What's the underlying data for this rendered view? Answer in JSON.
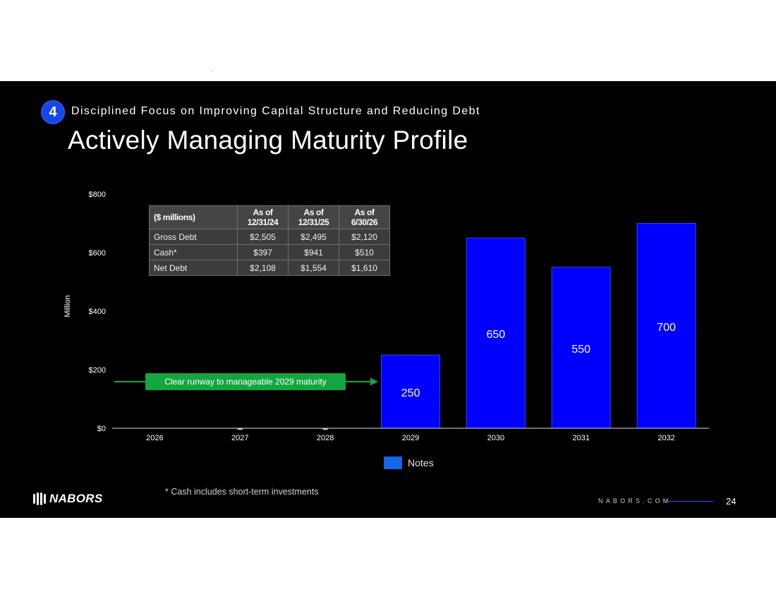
{
  "header": {
    "badge": "4",
    "kicker": "Disciplined Focus on Improving Capital Structure and Reducing Debt",
    "title": "Actively Managing Maturity Profile"
  },
  "colors": {
    "bar": "#0000ff",
    "callout": "#15a540",
    "legend_swatch": "#1565e8",
    "badge": "#1746e8"
  },
  "chart_data": {
    "type": "bar",
    "title": "",
    "xlabel": "",
    "ylabel": "Million",
    "categories": [
      "2026",
      "2027",
      "2028",
      "2029",
      "2030",
      "2031",
      "2032"
    ],
    "series": [
      {
        "name": "Notes",
        "values": [
          0,
          0,
          0,
          250,
          650,
          550,
          700
        ]
      }
    ],
    "data_labels": [
      "",
      "",
      "",
      "250",
      "650",
      "550",
      "700"
    ],
    "ylim": [
      0,
      800
    ],
    "yticks": [
      0,
      200,
      400,
      600,
      800
    ],
    "ytick_labels": [
      "$0",
      "$200",
      "$400",
      "$600",
      "$800"
    ],
    "grid": false,
    "legend": "bottom-center"
  },
  "debt_table": {
    "headers": [
      "($ millions)",
      "As of 12/31/24",
      "As of 12/31/25",
      "As of 6/30/26"
    ],
    "rows": [
      [
        "Gross Debt",
        "$2,505",
        "$2,495",
        "$2,120"
      ],
      [
        "Cash*",
        "$397",
        "$941",
        "$510"
      ],
      [
        "Net Debt",
        "$2,108",
        "$1,554",
        "$1,610"
      ]
    ]
  },
  "callout": "Clear runway to manageable 2029 maturity",
  "legend": {
    "label": "Notes"
  },
  "footnote": "* Cash includes short-term investments",
  "footer": {
    "logo": "NABORS",
    "site": "NABORS.COM",
    "page": "24"
  }
}
